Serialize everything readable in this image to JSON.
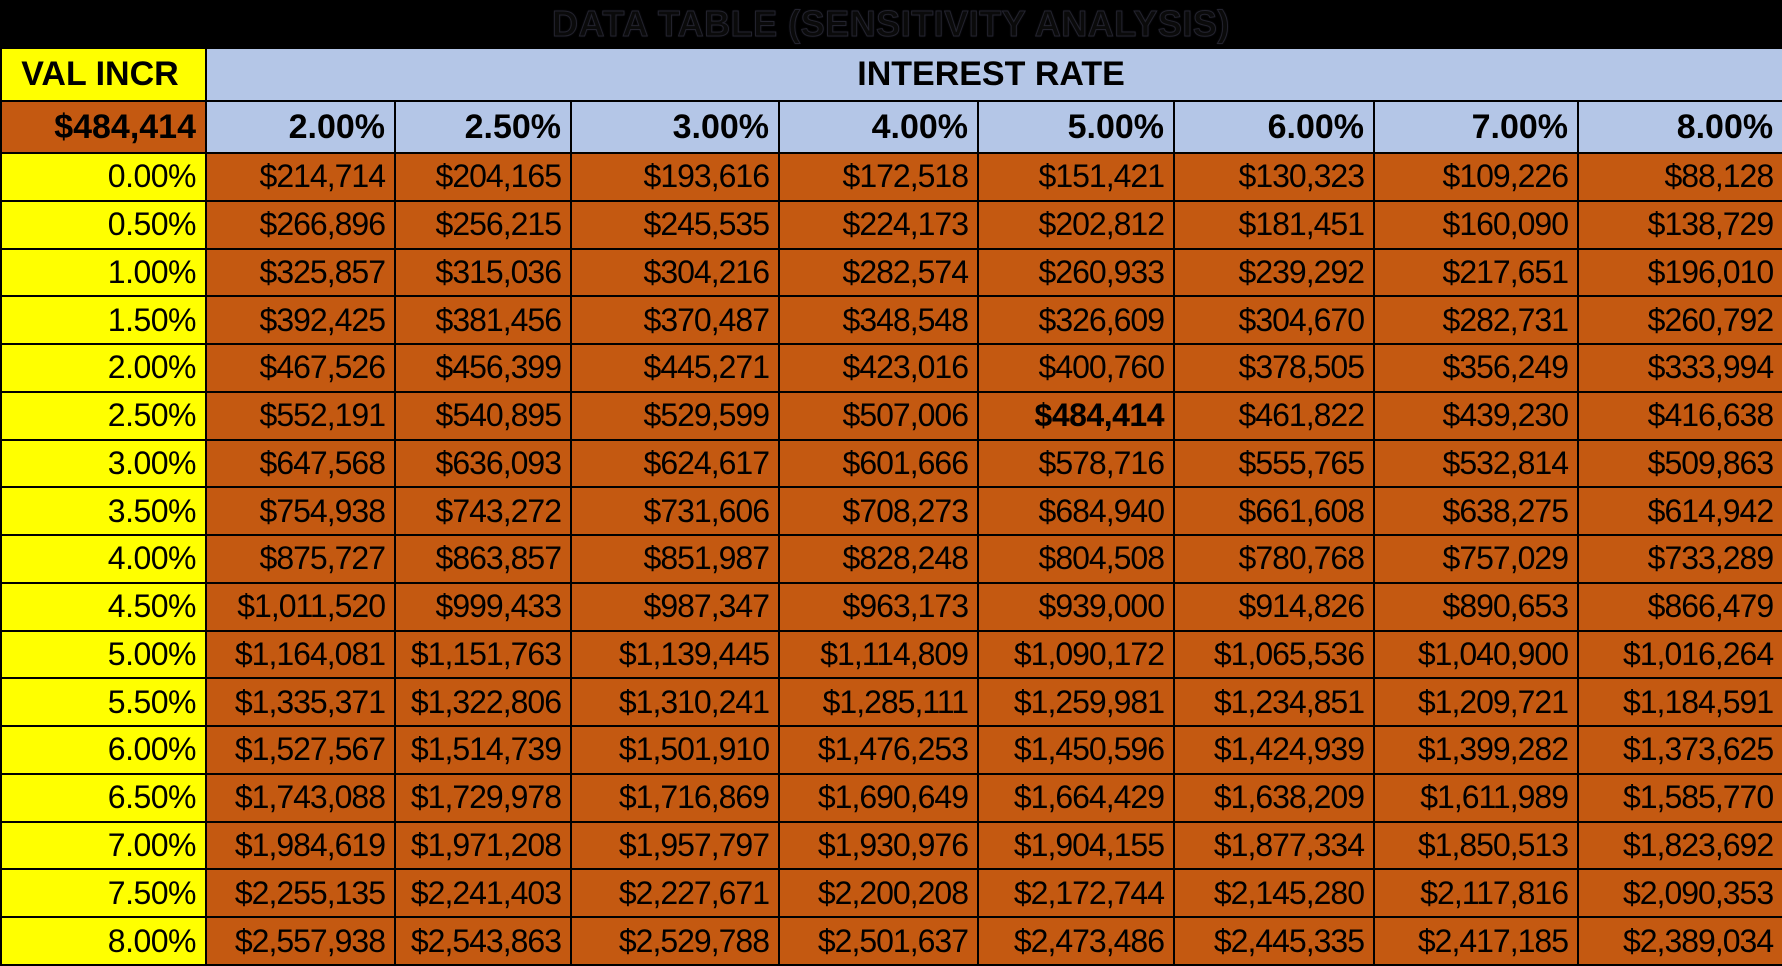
{
  "title": "DATA TABLE (SENSITIVITY ANALYSIS)",
  "table": {
    "corner_label": "VAL INCR",
    "col_group_label": "INTEREST RATE",
    "base_value": "$484,414",
    "rate_headers": [
      "2.00%",
      "2.50%",
      "3.00%",
      "4.00%",
      "5.00%",
      "6.00%",
      "7.00%",
      "8.00%"
    ],
    "rows": [
      {
        "label": "0.00%",
        "values": [
          "$214,714",
          "$204,165",
          "$193,616",
          "$172,518",
          "$151,421",
          "$130,323",
          "$109,226",
          "$88,128"
        ]
      },
      {
        "label": "0.50%",
        "values": [
          "$266,896",
          "$256,215",
          "$245,535",
          "$224,173",
          "$202,812",
          "$181,451",
          "$160,090",
          "$138,729"
        ]
      },
      {
        "label": "1.00%",
        "values": [
          "$325,857",
          "$315,036",
          "$304,216",
          "$282,574",
          "$260,933",
          "$239,292",
          "$217,651",
          "$196,010"
        ]
      },
      {
        "label": "1.50%",
        "values": [
          "$392,425",
          "$381,456",
          "$370,487",
          "$348,548",
          "$326,609",
          "$304,670",
          "$282,731",
          "$260,792"
        ]
      },
      {
        "label": "2.00%",
        "values": [
          "$467,526",
          "$456,399",
          "$445,271",
          "$423,016",
          "$400,760",
          "$378,505",
          "$356,249",
          "$333,994"
        ]
      },
      {
        "label": "2.50%",
        "values": [
          "$552,191",
          "$540,895",
          "$529,599",
          "$507,006",
          "$484,414",
          "$461,822",
          "$439,230",
          "$416,638"
        ]
      },
      {
        "label": "3.00%",
        "values": [
          "$647,568",
          "$636,093",
          "$624,617",
          "$601,666",
          "$578,716",
          "$555,765",
          "$532,814",
          "$509,863"
        ]
      },
      {
        "label": "3.50%",
        "values": [
          "$754,938",
          "$743,272",
          "$731,606",
          "$708,273",
          "$684,940",
          "$661,608",
          "$638,275",
          "$614,942"
        ]
      },
      {
        "label": "4.00%",
        "values": [
          "$875,727",
          "$863,857",
          "$851,987",
          "$828,248",
          "$804,508",
          "$780,768",
          "$757,029",
          "$733,289"
        ]
      },
      {
        "label": "4.50%",
        "values": [
          "$1,011,520",
          "$999,433",
          "$987,347",
          "$963,173",
          "$939,000",
          "$914,826",
          "$890,653",
          "$866,479"
        ]
      },
      {
        "label": "5.00%",
        "values": [
          "$1,164,081",
          "$1,151,763",
          "$1,139,445",
          "$1,114,809",
          "$1,090,172",
          "$1,065,536",
          "$1,040,900",
          "$1,016,264"
        ]
      },
      {
        "label": "5.50%",
        "values": [
          "$1,335,371",
          "$1,322,806",
          "$1,310,241",
          "$1,285,111",
          "$1,259,981",
          "$1,234,851",
          "$1,209,721",
          "$1,184,591"
        ]
      },
      {
        "label": "6.00%",
        "values": [
          "$1,527,567",
          "$1,514,739",
          "$1,501,910",
          "$1,476,253",
          "$1,450,596",
          "$1,424,939",
          "$1,399,282",
          "$1,373,625"
        ]
      },
      {
        "label": "6.50%",
        "values": [
          "$1,743,088",
          "$1,729,978",
          "$1,716,869",
          "$1,690,649",
          "$1,664,429",
          "$1,638,209",
          "$1,611,989",
          "$1,585,770"
        ]
      },
      {
        "label": "7.00%",
        "values": [
          "$1,984,619",
          "$1,971,208",
          "$1,957,797",
          "$1,930,976",
          "$1,904,155",
          "$1,877,334",
          "$1,850,513",
          "$1,823,692"
        ]
      },
      {
        "label": "7.50%",
        "values": [
          "$2,255,135",
          "$2,241,403",
          "$2,227,671",
          "$2,200,208",
          "$2,172,744",
          "$2,145,280",
          "$2,117,816",
          "$2,090,353"
        ]
      },
      {
        "label": "8.00%",
        "values": [
          "$2,557,938",
          "$2,543,863",
          "$2,529,788",
          "$2,501,637",
          "$2,473,486",
          "$2,445,335",
          "$2,417,185",
          "$2,389,034"
        ]
      }
    ],
    "highlight": {
      "row_label": "2.50%",
      "col_header": "5.00%",
      "row_index": 5,
      "col_index": 4,
      "value": "$484,414"
    }
  },
  "colors": {
    "background": "#000000",
    "row_label_bg": "#FFFF00",
    "rate_header_bg": "#B4C6E7",
    "data_cell_bg": "#C45911",
    "grid_border": "#000000",
    "text": "#000000"
  },
  "chart_data": {
    "type": "table",
    "title": "DATA TABLE (SENSITIVITY ANALYSIS)",
    "xlabel": "INTEREST RATE",
    "ylabel": "VAL INCR",
    "base_value": 484414,
    "columns": [
      0.02,
      0.025,
      0.03,
      0.04,
      0.05,
      0.06,
      0.07,
      0.08
    ],
    "row_labels": [
      0.0,
      0.005,
      0.01,
      0.015,
      0.02,
      0.025,
      0.03,
      0.035,
      0.04,
      0.045,
      0.05,
      0.055,
      0.06,
      0.065,
      0.07,
      0.075,
      0.08
    ],
    "values": [
      [
        214714,
        204165,
        193616,
        172518,
        151421,
        130323,
        109226,
        88128
      ],
      [
        266896,
        256215,
        245535,
        224173,
        202812,
        181451,
        160090,
        138729
      ],
      [
        325857,
        315036,
        304216,
        282574,
        260933,
        239292,
        217651,
        196010
      ],
      [
        392425,
        381456,
        370487,
        348548,
        326609,
        304670,
        282731,
        260792
      ],
      [
        467526,
        456399,
        445271,
        423016,
        400760,
        378505,
        356249,
        333994
      ],
      [
        552191,
        540895,
        529599,
        507006,
        484414,
        461822,
        439230,
        416638
      ],
      [
        647568,
        636093,
        624617,
        601666,
        578716,
        555765,
        532814,
        509863
      ],
      [
        754938,
        743272,
        731606,
        708273,
        684940,
        661608,
        638275,
        614942
      ],
      [
        875727,
        863857,
        851987,
        828248,
        804508,
        780768,
        757029,
        733289
      ],
      [
        1011520,
        999433,
        987347,
        963173,
        939000,
        914826,
        890653,
        866479
      ],
      [
        1164081,
        1151763,
        1139445,
        1114809,
        1090172,
        1065536,
        1040900,
        1016264
      ],
      [
        1335371,
        1322806,
        1310241,
        1285111,
        1259981,
        1234851,
        1209721,
        1184591
      ],
      [
        1527567,
        1514739,
        1501910,
        1476253,
        1450596,
        1424939,
        1399282,
        1373625
      ],
      [
        1743088,
        1729978,
        1716869,
        1690649,
        1664429,
        1638209,
        1611989,
        1585770
      ],
      [
        1984619,
        1971208,
        1957797,
        1930976,
        1904155,
        1877334,
        1850513,
        1823692
      ],
      [
        2255135,
        2241403,
        2227671,
        2200208,
        2172744,
        2145280,
        2117816,
        2090353
      ],
      [
        2557938,
        2543863,
        2529788,
        2501637,
        2473486,
        2445335,
        2417185,
        2389034
      ]
    ],
    "highlight_cell": {
      "row_label": 0.025,
      "column": 0.05,
      "value": 484414
    }
  }
}
